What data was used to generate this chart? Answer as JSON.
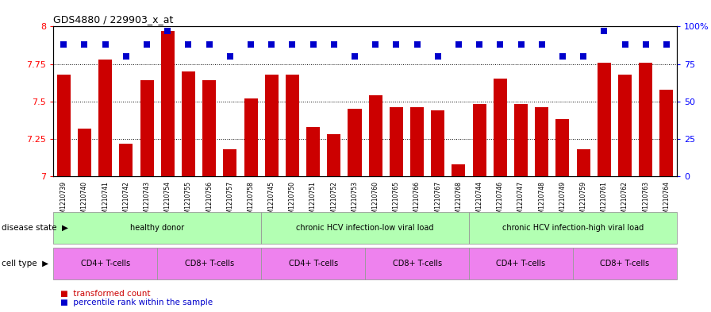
{
  "title": "GDS4880 / 229903_x_at",
  "samples": [
    "GSM1210739",
    "GSM1210740",
    "GSM1210741",
    "GSM1210742",
    "GSM1210743",
    "GSM1210754",
    "GSM1210755",
    "GSM1210756",
    "GSM1210757",
    "GSM1210758",
    "GSM1210745",
    "GSM1210750",
    "GSM1210751",
    "GSM1210752",
    "GSM1210753",
    "GSM1210760",
    "GSM1210765",
    "GSM1210766",
    "GSM1210767",
    "GSM1210768",
    "GSM1210744",
    "GSM1210746",
    "GSM1210747",
    "GSM1210748",
    "GSM1210749",
    "GSM1210759",
    "GSM1210761",
    "GSM1210762",
    "GSM1210763",
    "GSM1210764"
  ],
  "bar_values": [
    7.68,
    7.32,
    7.78,
    7.22,
    7.64,
    7.97,
    7.7,
    7.64,
    7.18,
    7.52,
    7.68,
    7.68,
    7.33,
    7.28,
    7.45,
    7.54,
    7.46,
    7.46,
    7.44,
    7.08,
    7.48,
    7.65,
    7.48,
    7.46,
    7.38,
    7.18,
    7.76,
    7.68,
    7.76,
    7.58
  ],
  "dot_percentiles": [
    88,
    88,
    88,
    80,
    88,
    97,
    88,
    88,
    80,
    88,
    88,
    88,
    88,
    88,
    80,
    88,
    88,
    88,
    80,
    88,
    88,
    88,
    88,
    88,
    80,
    80,
    97,
    88,
    88,
    88
  ],
  "bar_color": "#cc0000",
  "dot_color": "#0000cc",
  "y_min": 7.0,
  "y_max": 8.0,
  "yticks_left": [
    7.0,
    7.25,
    7.5,
    7.75,
    8.0
  ],
  "ytick_labels_left": [
    "7",
    "7.25",
    "7.5",
    "7.75",
    "8"
  ],
  "yticks_right": [
    0,
    25,
    50,
    75,
    100
  ],
  "ytick_labels_right": [
    "0",
    "25",
    "50",
    "75",
    "100%"
  ],
  "gridlines": [
    7.25,
    7.5,
    7.75
  ],
  "disease_states": [
    {
      "label": "healthy donor",
      "start": 0,
      "end": 9
    },
    {
      "label": "chronic HCV infection-low viral load",
      "start": 10,
      "end": 19
    },
    {
      "label": "chronic HCV infection-high viral load",
      "start": 20,
      "end": 29
    }
  ],
  "cell_types": [
    {
      "label": "CD4+ T-cells",
      "start": 0,
      "end": 4
    },
    {
      "label": "CD8+ T-cells",
      "start": 5,
      "end": 9
    },
    {
      "label": "CD4+ T-cells",
      "start": 10,
      "end": 14
    },
    {
      "label": "CD8+ T-cells",
      "start": 15,
      "end": 19
    },
    {
      "label": "CD4+ T-cells",
      "start": 20,
      "end": 24
    },
    {
      "label": "CD8+ T-cells",
      "start": 25,
      "end": 29
    }
  ],
  "disease_state_color": "#b3ffb3",
  "cell_type_color": "#ee82ee",
  "disease_state_label": "disease state",
  "cell_type_label": "cell type",
  "legend_bar": "transformed count",
  "legend_dot": "percentile rank within the sample",
  "bar_width": 0.65
}
